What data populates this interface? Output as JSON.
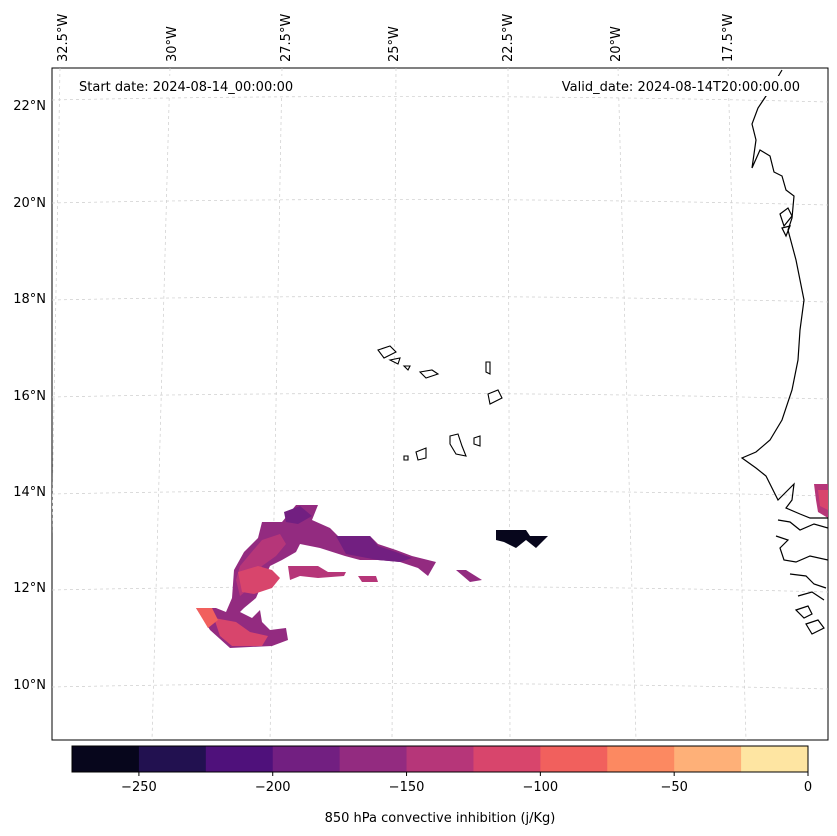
{
  "header": {
    "start_date": "Start date: 2024-08-14_00:00:00",
    "valid_date": "Valid_date: 2024-08-14T20:00:00.00"
  },
  "map": {
    "lon_labels": [
      "32.5°W",
      "30°W",
      "27.5°W",
      "25°W",
      "22.5°W",
      "20°W",
      "17.5°W"
    ],
    "lat_labels": [
      "22°N",
      "20°N",
      "18°N",
      "16°N",
      "14°N",
      "12°N",
      "10°N"
    ]
  },
  "colorbar": {
    "label": "850 hPa convective inhibition (j/Kg)",
    "ticks": [
      "−250",
      "−200",
      "−150",
      "−100",
      "−50",
      "0"
    ],
    "tick_values": [
      -250,
      -200,
      -150,
      -100,
      -50,
      0
    ],
    "range": [
      -275,
      0
    ],
    "colors": [
      "#07061c",
      "#221150",
      "#4f117b",
      "#721f81",
      "#932b80",
      "#b63679",
      "#d8456c",
      "#f1605d",
      "#fc8961",
      "#feb078",
      "#fee5a2"
    ]
  },
  "colors": {
    "coastline": "#000000",
    "gridline": "#cccccc"
  }
}
